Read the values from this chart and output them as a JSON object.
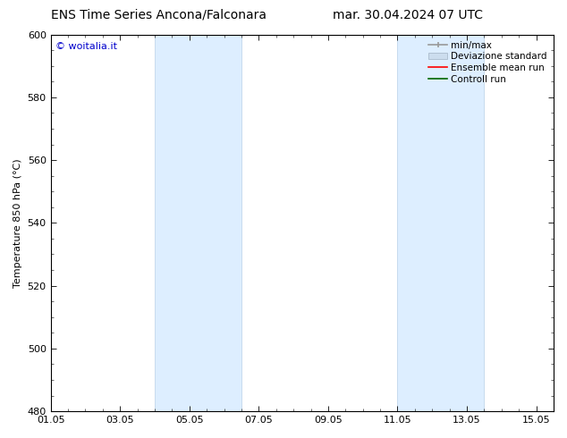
{
  "title_left": "ENS Time Series Ancona/Falconara",
  "title_right": "mar. 30.04.2024 07 UTC",
  "ylabel": "Temperature 850 hPa (°C)",
  "ylim": [
    480,
    600
  ],
  "yticks": [
    480,
    500,
    520,
    540,
    560,
    580,
    600
  ],
  "xtick_positions": [
    0,
    2,
    4,
    6,
    8,
    10,
    12,
    14
  ],
  "xtick_labels": [
    "01.05",
    "03.05",
    "05.05",
    "07.05",
    "09.05",
    "11.05",
    "13.05",
    "15.05"
  ],
  "xlim": [
    0,
    14.5
  ],
  "shaded_bands": [
    {
      "x_start": 3.0,
      "x_end": 5.5
    },
    {
      "x_start": 10.0,
      "x_end": 12.5
    }
  ],
  "band_color": "#ddeeff",
  "band_edge_color": "#b8d0e8",
  "watermark_text": "© woitalia.it",
  "watermark_color": "#0000cc",
  "bg_color": "#ffffff",
  "title_fontsize": 10,
  "tick_fontsize": 8,
  "ylabel_fontsize": 8,
  "legend_fontsize": 7.5
}
